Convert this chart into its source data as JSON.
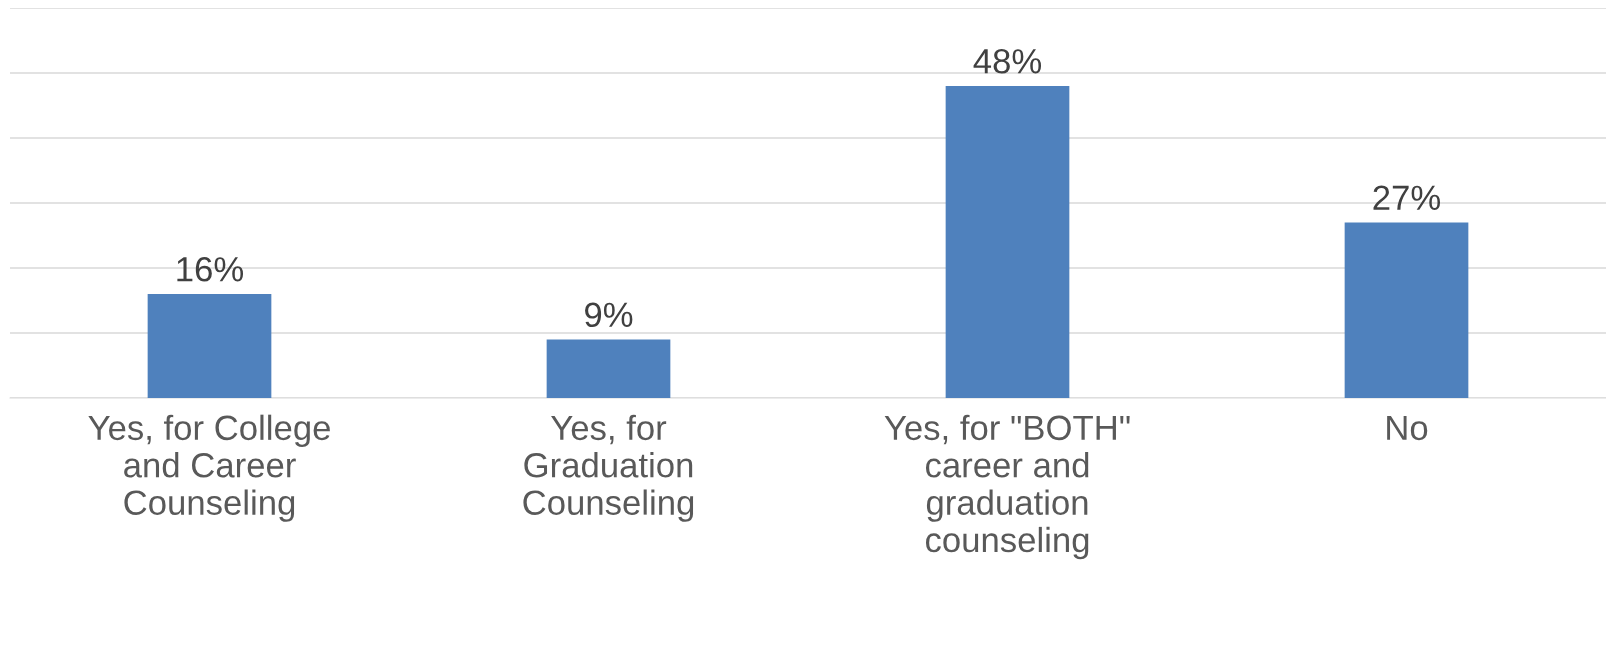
{
  "chart_data": {
    "type": "bar",
    "categories": [
      "Yes, for College\nand Career\nCounseling",
      "Yes, for\nGraduation\nCounseling",
      "Yes, for \"BOTH\"\ncareer and\ngraduation\ncounseling",
      "No"
    ],
    "values": [
      16,
      9,
      48,
      27
    ],
    "value_labels": [
      "16%",
      "9%",
      "48%",
      "27%"
    ],
    "color": "#4f81bd",
    "ylim": [
      0,
      60
    ],
    "yticks": [
      0,
      10,
      20,
      30,
      40,
      50,
      60
    ],
    "tick_labels": "x",
    "grid": "y",
    "legend": false
  }
}
